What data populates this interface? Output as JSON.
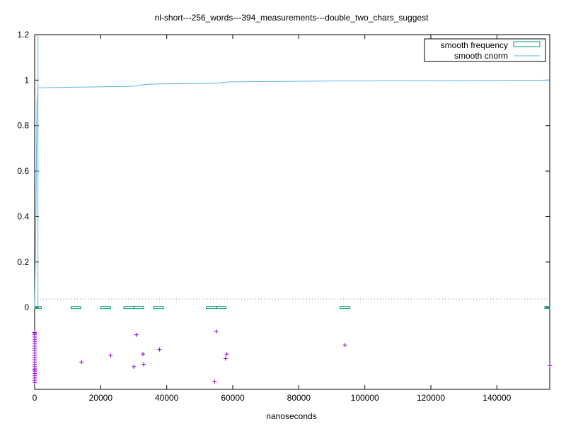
{
  "chart_data": {
    "type": "line",
    "title": "nl-short---256_words---394_measurements---double_two_chars_suggest",
    "xlabel": "nanoseconds",
    "ylabel": "",
    "xlim": [
      0,
      156000
    ],
    "ylim": [
      -0.36,
      1.2
    ],
    "x_ticks": [
      "0",
      "20000",
      "40000",
      "60000",
      "80000",
      "100000",
      "120000",
      "140000"
    ],
    "x_tick_values": [
      0,
      20000,
      40000,
      60000,
      80000,
      100000,
      120000,
      140000
    ],
    "y_ticks": [
      "0",
      "0.2",
      "0.4",
      "0.6",
      "0.8",
      "1",
      "1.2"
    ],
    "y_tick_values": [
      0,
      0.2,
      0.4,
      0.6,
      0.8,
      1.0,
      1.2
    ],
    "grid": false,
    "legend_position": "top-right",
    "colors": {
      "smooth_frequency": "#009e73",
      "smooth_cnorm": "#56b4e9",
      "points": "#9400d3",
      "zero_line": "#888888"
    },
    "series": [
      {
        "name": "smooth frequency",
        "style": "boxes",
        "x": [
          500,
          12500,
          21500,
          28500,
          31500,
          37500,
          53500,
          56500,
          94000,
          156000
        ],
        "values": [
          0,
          0,
          0,
          0,
          0,
          0,
          0,
          0,
          0,
          0
        ]
      },
      {
        "name": "smooth cnorm",
        "style": "line",
        "x": [
          0,
          300,
          700,
          1000,
          1500,
          30000,
          33000,
          37000,
          55000,
          57000,
          59000,
          90000,
          156000
        ],
        "values": [
          0.0,
          0.3,
          0.9,
          0.965,
          0.966,
          0.973,
          0.98,
          0.983,
          0.986,
          0.99,
          0.992,
          0.996,
          1.0
        ]
      },
      {
        "name": "",
        "style": "points",
        "x": [
          14200,
          23000,
          30000,
          30800,
          32800,
          33000,
          37800,
          54500,
          55000,
          57800,
          58200,
          94000,
          156000,
          0,
          0,
          0,
          0,
          0,
          0,
          0,
          0,
          0,
          0,
          0,
          0,
          0,
          0,
          0,
          0,
          0,
          0,
          0,
          0,
          0,
          0,
          0,
          0,
          0
        ],
        "values": [
          -0.24,
          -0.21,
          -0.26,
          -0.12,
          -0.205,
          -0.25,
          -0.185,
          -0.325,
          -0.105,
          -0.225,
          -0.205,
          -0.165,
          -0.255,
          -0.11,
          -0.12,
          -0.13,
          -0.14,
          -0.15,
          -0.16,
          -0.17,
          -0.18,
          -0.19,
          -0.2,
          -0.21,
          -0.22,
          -0.23,
          -0.24,
          -0.25,
          -0.26,
          -0.27,
          -0.28,
          -0.29,
          -0.3,
          -0.31,
          -0.32,
          -0.33,
          -0.115,
          -0.275
        ]
      }
    ]
  }
}
